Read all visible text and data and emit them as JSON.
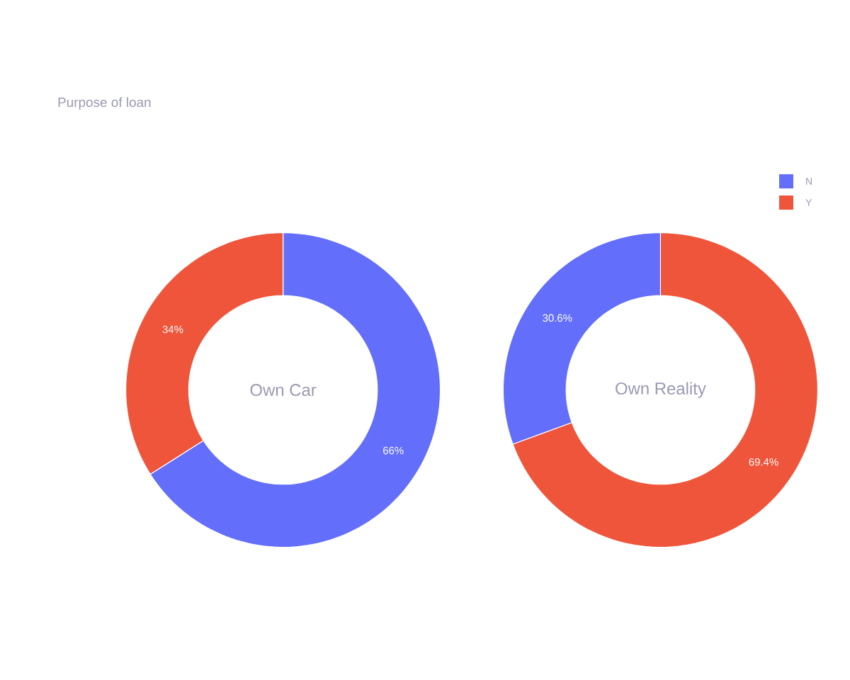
{
  "chart_data": [
    {
      "type": "donut",
      "title": "Purpose of loan",
      "annotations": [
        "Own Car"
      ],
      "categories": [
        "N",
        "Y"
      ],
      "values": [
        66,
        34
      ],
      "colors": [
        "#636efa",
        "#ef553b"
      ],
      "value_labels": [
        "66%",
        "34%"
      ],
      "legend": "top right"
    },
    {
      "type": "donut",
      "annotations": [
        "Own Reality"
      ],
      "categories": [
        null,
        null
      ],
      "values": [
        69.4,
        30.6
      ],
      "colors": [
        "#ef553b",
        "#636efa"
      ],
      "value_labels": [
        "69.4%",
        "30.6%"
      ]
    }
  ]
}
